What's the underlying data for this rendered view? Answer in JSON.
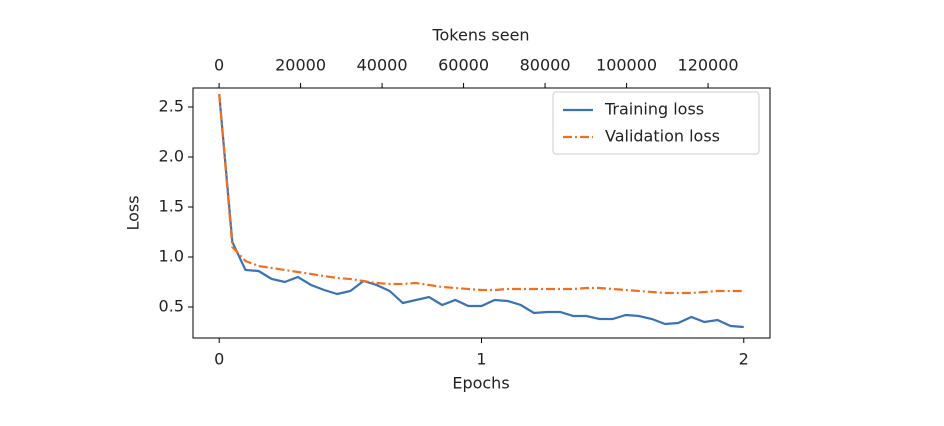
{
  "chart_data": {
    "type": "line",
    "xlabel": "Epochs",
    "ylabel": "Loss",
    "x2label": "Tokens seen",
    "x": [
      0,
      0.05,
      0.1,
      0.15,
      0.2,
      0.25,
      0.3,
      0.35,
      0.4,
      0.45,
      0.5,
      0.55,
      0.6,
      0.65,
      0.7,
      0.75,
      0.8,
      0.85,
      0.9,
      0.95,
      1,
      1.05,
      1.1,
      1.15,
      1.2,
      1.25,
      1.3,
      1.35,
      1.4,
      1.45,
      1.5,
      1.55,
      1.6,
      1.65,
      1.7,
      1.75,
      1.8,
      1.85,
      1.9,
      1.95,
      2
    ],
    "series": [
      {
        "name": "Training loss",
        "color": "#3a73b4",
        "dash": "solid",
        "values": [
          2.63,
          1.15,
          0.87,
          0.86,
          0.78,
          0.75,
          0.8,
          0.72,
          0.67,
          0.63,
          0.66,
          0.76,
          0.72,
          0.66,
          0.54,
          0.57,
          0.6,
          0.52,
          0.57,
          0.51,
          0.51,
          0.57,
          0.56,
          0.52,
          0.44,
          0.45,
          0.45,
          0.41,
          0.41,
          0.38,
          0.38,
          0.42,
          0.41,
          0.38,
          0.33,
          0.34,
          0.4,
          0.35,
          0.37,
          0.31,
          0.3
        ]
      },
      {
        "name": "Validation loss",
        "color": "#f07021",
        "dash": "dashdot",
        "values": [
          2.63,
          1.1,
          0.96,
          0.91,
          0.89,
          0.87,
          0.85,
          0.83,
          0.81,
          0.79,
          0.78,
          0.76,
          0.74,
          0.73,
          0.73,
          0.74,
          0.72,
          0.7,
          0.69,
          0.68,
          0.67,
          0.67,
          0.68,
          0.68,
          0.68,
          0.68,
          0.68,
          0.68,
          0.69,
          0.69,
          0.68,
          0.67,
          0.66,
          0.65,
          0.64,
          0.64,
          0.64,
          0.65,
          0.66,
          0.66,
          0.66
        ]
      }
    ],
    "xlim": [
      -0.1,
      2.1
    ],
    "xticks": [
      0,
      1,
      2
    ],
    "ylim": [
      0.19,
      2.69
    ],
    "yticks": [
      0.5,
      1.0,
      1.5,
      2.0,
      2.5
    ],
    "x2lim": [
      -6400,
      135200
    ],
    "x2ticks": [
      0,
      20000,
      40000,
      60000,
      80000,
      100000,
      120000
    ],
    "legend": "upper right",
    "grid": false
  }
}
